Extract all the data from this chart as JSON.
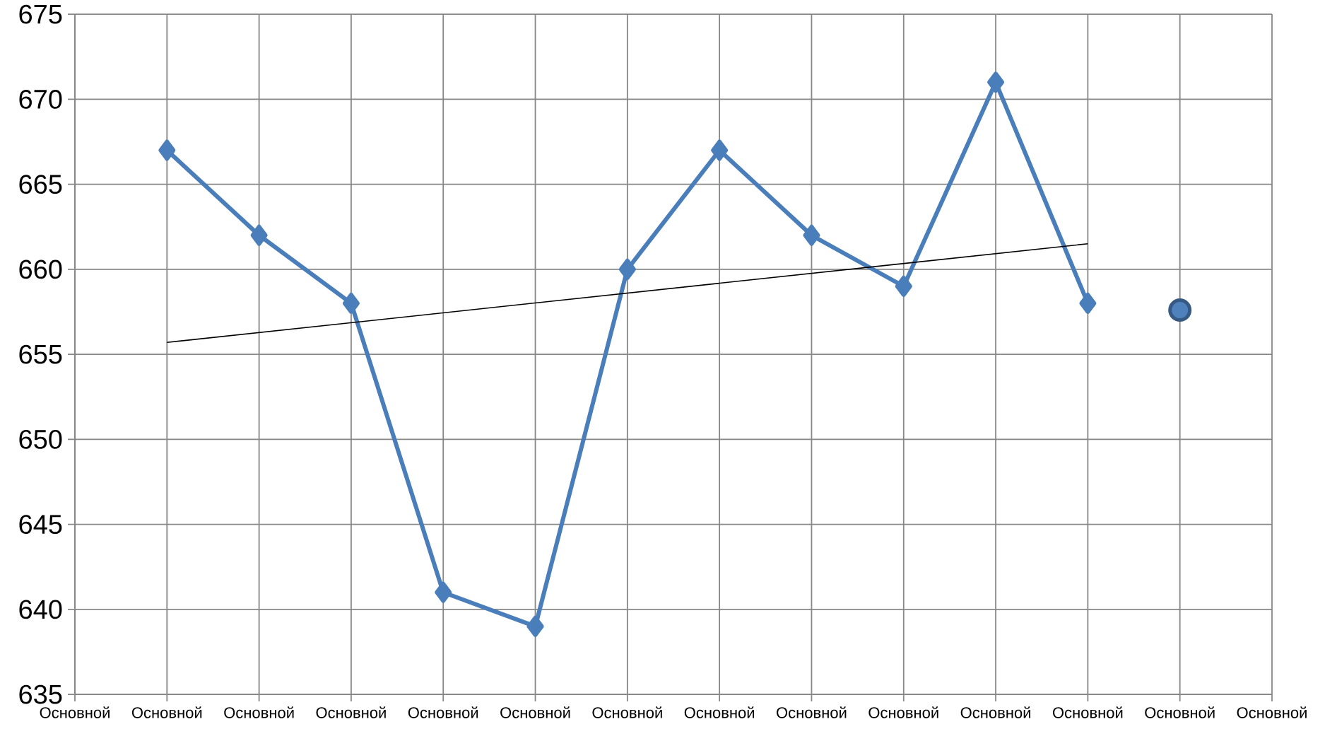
{
  "chart_data": {
    "type": "line",
    "categories": [
      "Основной",
      "Основной",
      "Основной",
      "Основной",
      "Основной",
      "Основной",
      "Основной",
      "Основной",
      "Основной",
      "Основной",
      "Основной",
      "Основной",
      "Основной",
      "Основной"
    ],
    "series": [
      {
        "color": "#4a7ebb",
        "marker": "diamond",
        "values": [
          null,
          667,
          662,
          658,
          641,
          639,
          660,
          667,
          662,
          659,
          671,
          658,
          null,
          null
        ]
      },
      {
        "color": "#000000",
        "marker": "none",
        "values": [
          null,
          655.7,
          null,
          null,
          null,
          null,
          null,
          null,
          null,
          null,
          null,
          661.5,
          null,
          null
        ]
      },
      {
        "type": "scatter",
        "color": "#4f81bd",
        "marker": "circle",
        "values": [
          null,
          null,
          null,
          null,
          null,
          null,
          null,
          null,
          null,
          null,
          null,
          null,
          657.6,
          null
        ]
      }
    ],
    "ylim": [
      635,
      675
    ],
    "yticks": [
      635,
      640,
      645,
      650,
      655,
      660,
      665,
      670,
      675
    ],
    "grid": true
  }
}
